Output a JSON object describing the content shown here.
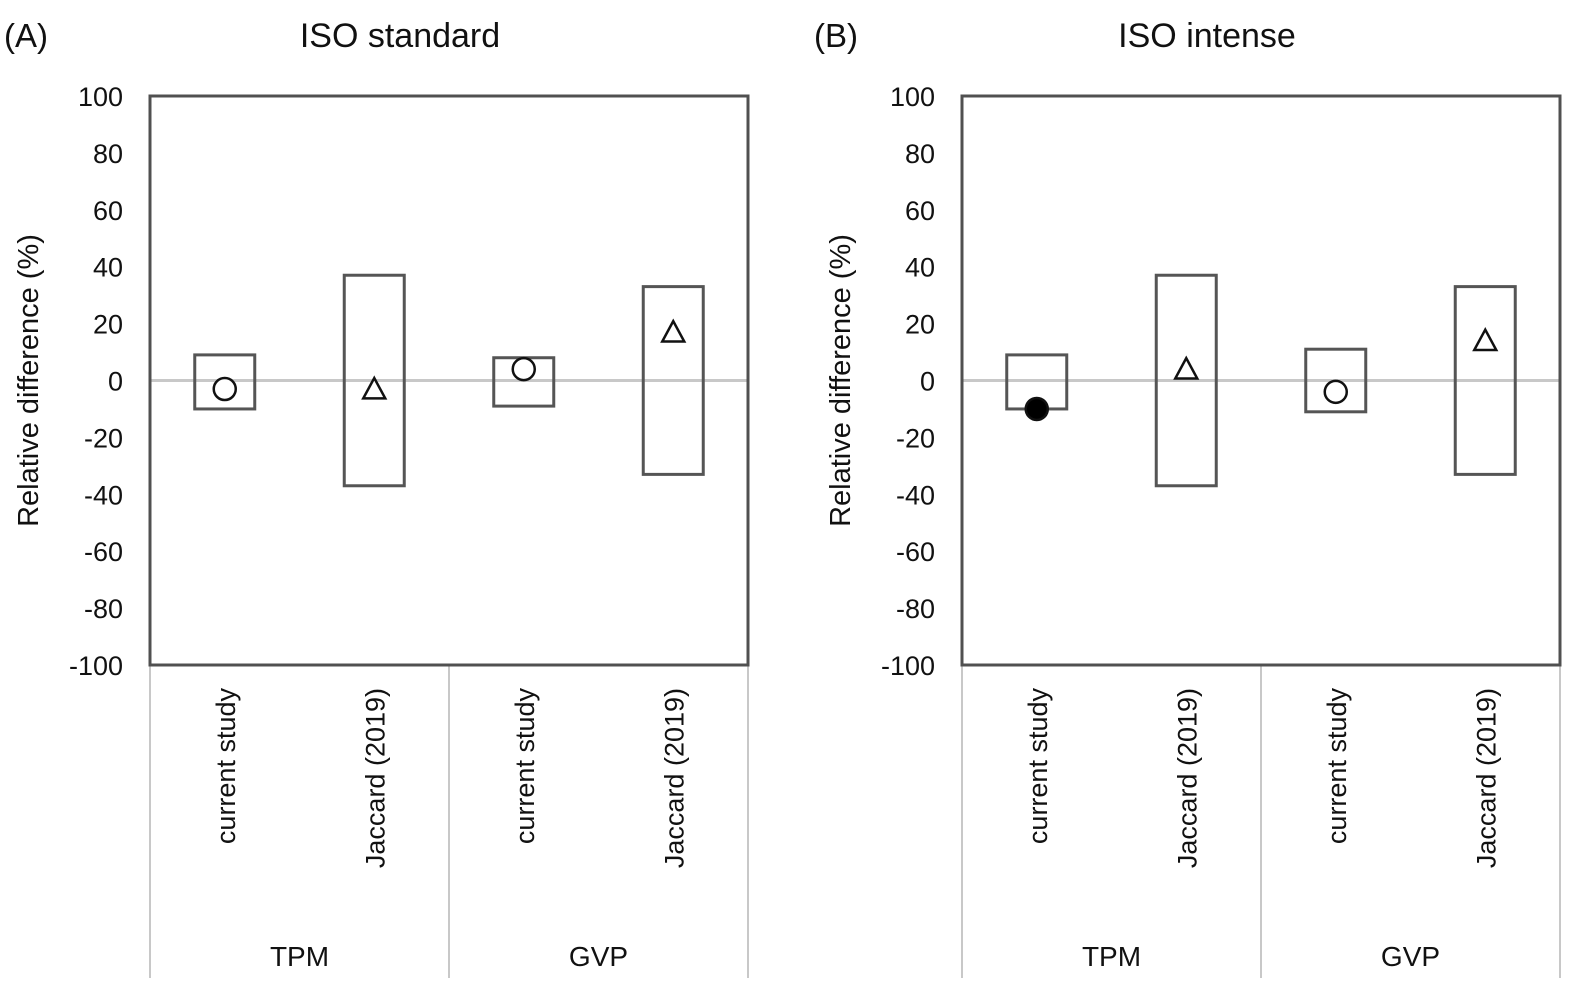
{
  "chart_data": [
    {
      "type": "scatter",
      "panel_label": "(A)",
      "title": "ISO standard",
      "ylabel": "Relative difference (%)",
      "ylim": [
        -100,
        100
      ],
      "yticks": [
        100,
        80,
        60,
        40,
        20,
        0,
        -20,
        -40,
        -60,
        -80,
        -100
      ],
      "reference_line": 0,
      "groups": [
        {
          "name": "TPM",
          "categories": [
            "current study",
            "Jaccard (2019)"
          ]
        },
        {
          "name": "GVP",
          "categories": [
            "current study",
            "Jaccard (2019)"
          ]
        }
      ],
      "points": [
        {
          "group": "TPM",
          "category": "current study",
          "value": -3,
          "box": [
            -10,
            9
          ],
          "marker": "circle-open"
        },
        {
          "group": "TPM",
          "category": "Jaccard (2019)",
          "value": -3,
          "box": [
            -37,
            37
          ],
          "marker": "triangle-open"
        },
        {
          "group": "GVP",
          "category": "current study",
          "value": 4,
          "box": [
            -9,
            8
          ],
          "marker": "circle-open"
        },
        {
          "group": "GVP",
          "category": "Jaccard (2019)",
          "value": 17,
          "box": [
            -33,
            33
          ],
          "marker": "triangle-open"
        }
      ]
    },
    {
      "type": "scatter",
      "panel_label": "(B)",
      "title": "ISO intense",
      "ylabel": "Relative difference (%)",
      "ylim": [
        -100,
        100
      ],
      "yticks": [
        100,
        80,
        60,
        40,
        20,
        0,
        -20,
        -40,
        -60,
        -80,
        -100
      ],
      "reference_line": 0,
      "groups": [
        {
          "name": "TPM",
          "categories": [
            "current study",
            "Jaccard (2019)"
          ]
        },
        {
          "name": "GVP",
          "categories": [
            "current study",
            "Jaccard (2019)"
          ]
        }
      ],
      "points": [
        {
          "group": "TPM",
          "category": "current study",
          "value": -10,
          "box": [
            -10,
            9
          ],
          "marker": "circle-filled"
        },
        {
          "group": "TPM",
          "category": "Jaccard (2019)",
          "value": 4,
          "box": [
            -37,
            37
          ],
          "marker": "triangle-open"
        },
        {
          "group": "GVP",
          "category": "current study",
          "value": -4,
          "box": [
            -11,
            11
          ],
          "marker": "circle-open"
        },
        {
          "group": "GVP",
          "category": "Jaccard (2019)",
          "value": 14,
          "box": [
            -33,
            33
          ],
          "marker": "triangle-open"
        }
      ]
    }
  ],
  "colors": {
    "axis": "#505050",
    "box": "#555555",
    "zero_line": "#c8c8c8",
    "separator": "#c8c8c8",
    "marker_stroke": "#111111",
    "marker_fill_filled": "#000000",
    "marker_fill_open": "#ffffff"
  }
}
